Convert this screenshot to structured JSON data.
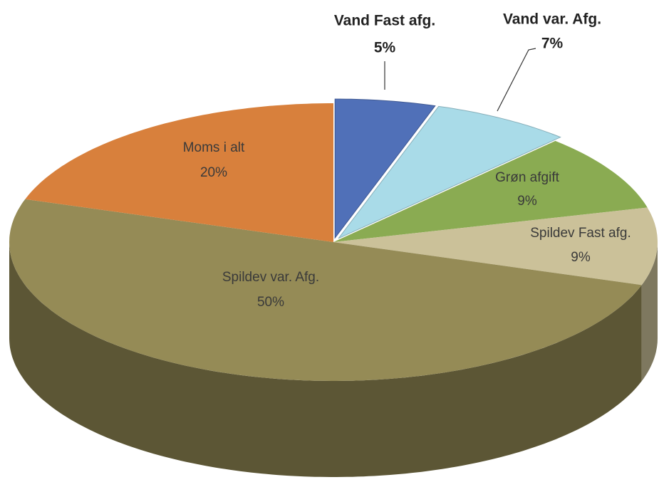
{
  "chart_data": {
    "type": "pie",
    "categories": [
      "Vand Fast afg.",
      "Vand var. Afg.",
      "Grøn afgift",
      "Spildev Fast afg.",
      "Spildev var. Afg.",
      "Moms i alt"
    ],
    "values": [
      5,
      7,
      9,
      9,
      50,
      20
    ],
    "value_labels": [
      "5%",
      "7%",
      "9%",
      "9%",
      "50%",
      "20%"
    ],
    "colors": [
      "#5070b8",
      "#a9dbe8",
      "#8aab52",
      "#cbc199",
      "#958b56",
      "#d8803c"
    ]
  }
}
